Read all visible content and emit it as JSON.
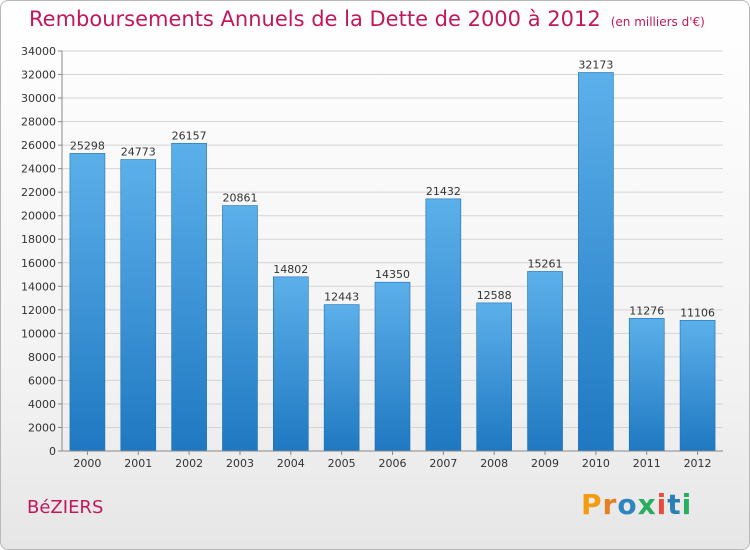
{
  "header": {
    "title": "Remboursements Annuels de la Dette de 2000 à 2012",
    "subtitle": "(en milliers d'€)"
  },
  "footer": {
    "city": "BéZIERS",
    "logo": "Proxiti"
  },
  "chart_data": {
    "type": "bar",
    "title": "Remboursements Annuels de la Dette de 2000 à 2012",
    "subtitle": "(en milliers d'€)",
    "xlabel": "",
    "ylabel": "",
    "categories": [
      "2000",
      "2001",
      "2002",
      "2003",
      "2004",
      "2005",
      "2006",
      "2007",
      "2008",
      "2009",
      "2010",
      "2011",
      "2012"
    ],
    "values": [
      25298,
      24773,
      26157,
      20861,
      14802,
      12443,
      14350,
      21432,
      12588,
      15261,
      32173,
      11276,
      11106
    ],
    "ylim": [
      0,
      34000
    ],
    "yticks": [
      0,
      2000,
      4000,
      6000,
      8000,
      10000,
      12000,
      14000,
      16000,
      18000,
      20000,
      22000,
      24000,
      26000,
      28000,
      30000,
      32000,
      34000
    ],
    "grid": true,
    "bar_color": "#3a8fd6",
    "data_labels": true
  }
}
